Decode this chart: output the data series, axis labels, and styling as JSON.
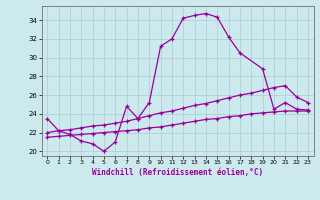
{
  "xlabel": "Windchill (Refroidissement éolien,°C)",
  "bg_color": "#cce9ee",
  "grid_color": "#aacdd5",
  "line_color": "#990099",
  "ylim": [
    19.5,
    35.5
  ],
  "xlim": [
    -0.5,
    23.5
  ],
  "yticks": [
    20,
    22,
    24,
    26,
    28,
    30,
    32,
    34
  ],
  "xticks": [
    0,
    1,
    2,
    3,
    4,
    5,
    6,
    7,
    8,
    9,
    10,
    11,
    12,
    13,
    14,
    15,
    16,
    17,
    18,
    19,
    20,
    21,
    22,
    23
  ],
  "main_x": [
    0,
    1,
    2,
    3,
    4,
    5,
    6,
    7,
    8,
    9,
    10,
    11,
    12,
    13,
    14,
    15,
    16,
    17,
    19,
    20,
    21,
    22,
    23
  ],
  "main_y": [
    23.5,
    22.2,
    21.8,
    21.1,
    20.8,
    20.0,
    21.0,
    24.8,
    23.5,
    25.2,
    31.2,
    32.0,
    34.2,
    34.5,
    34.7,
    34.3,
    32.2,
    30.5,
    28.8,
    24.5,
    25.2,
    24.5,
    24.4
  ],
  "upper_x": [
    0,
    1,
    2,
    3,
    4,
    5,
    6,
    7,
    8,
    9,
    10,
    11,
    12,
    13,
    14,
    15,
    16,
    17,
    18,
    19,
    20,
    21,
    22,
    23
  ],
  "upper_y": [
    22.0,
    22.2,
    22.3,
    22.5,
    22.7,
    22.8,
    23.0,
    23.2,
    23.5,
    23.8,
    24.1,
    24.3,
    24.6,
    24.9,
    25.1,
    25.4,
    25.7,
    26.0,
    26.2,
    26.5,
    26.8,
    27.0,
    25.8,
    25.2
  ],
  "lower_x": [
    0,
    1,
    2,
    3,
    4,
    5,
    6,
    7,
    8,
    9,
    10,
    11,
    12,
    13,
    14,
    15,
    16,
    17,
    18,
    19,
    20,
    21,
    22,
    23
  ],
  "lower_y": [
    21.5,
    21.6,
    21.7,
    21.8,
    21.9,
    22.0,
    22.1,
    22.2,
    22.3,
    22.5,
    22.6,
    22.8,
    23.0,
    23.2,
    23.4,
    23.5,
    23.7,
    23.8,
    24.0,
    24.1,
    24.2,
    24.3,
    24.3,
    24.3
  ]
}
